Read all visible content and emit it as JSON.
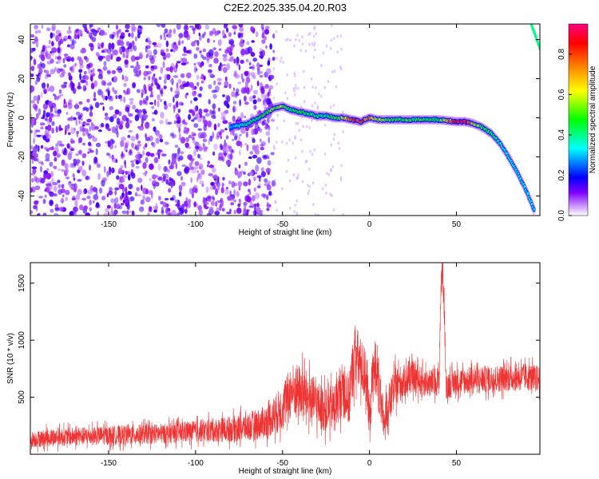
{
  "title": "C2E2.2025.335.04.20.R03",
  "chart_data": [
    {
      "type": "heatmap",
      "xlabel": "Height of straight line (km)",
      "ylabel": "Frequency (Hz)",
      "xlim": [
        -195,
        98
      ],
      "ylim": [
        -50,
        48
      ],
      "xticks": [
        -150,
        -100,
        -50,
        0,
        50
      ],
      "yticks": [
        -40,
        -20,
        0,
        20,
        40
      ],
      "colorbar": {
        "label": "Normalized spectral amplitude",
        "range": [
          0.0,
          0.95
        ],
        "ticks": [
          0.0,
          0.2,
          0.4,
          0.6,
          0.8
        ],
        "colors": [
          "#ffffff",
          "#c080ff",
          "#8000ff",
          "#0000ff",
          "#00ffff",
          "#00ff00",
          "#ffff00",
          "#ff8000",
          "#ff0000",
          "#ff00ff"
        ]
      },
      "ridge": {
        "x": [
          -80,
          -70,
          -60,
          -55,
          -50,
          -45,
          -40,
          -35,
          -30,
          -25,
          -20,
          -15,
          -10,
          -5,
          0,
          5,
          10,
          20,
          30,
          40,
          50,
          55,
          60,
          65,
          70,
          75,
          80,
          85,
          90,
          95
        ],
        "y": [
          -5,
          -3,
          2,
          5,
          6,
          4,
          3,
          2,
          1,
          1,
          0,
          0,
          -1,
          -2,
          0,
          -1,
          -1,
          -1,
          -1,
          -1,
          -2,
          -2,
          -3,
          -5,
          -8,
          -13,
          -20,
          -28,
          -37,
          -48
        ],
        "amplitude": [
          0.3,
          0.4,
          0.5,
          0.55,
          0.6,
          0.45,
          0.5,
          0.5,
          0.45,
          0.4,
          0.5,
          0.6,
          0.85,
          0.8,
          0.75,
          0.6,
          0.5,
          0.5,
          0.5,
          0.45,
          0.9,
          0.95,
          0.6,
          0.5,
          0.45,
          0.4,
          0.35,
          0.35,
          0.35,
          0.3
        ]
      }
    },
    {
      "type": "line",
      "xlabel": "Height of straight line (km)",
      "ylabel": "SNR (10 * v/v)",
      "xlim": [
        -195,
        98
      ],
      "ylim": [
        0,
        1680
      ],
      "xticks": [
        -150,
        -100,
        -50,
        0,
        50
      ],
      "yticks": [
        500,
        1000,
        1500
      ],
      "color": "#ee3333",
      "series": [
        {
          "x": [
            -195,
            -180,
            -160,
            -140,
            -120,
            -100,
            -90,
            -80,
            -70,
            -60,
            -50,
            -45,
            -40,
            -35,
            -30,
            -25,
            -20,
            -15,
            -12,
            -10,
            -8,
            -6,
            -4,
            -2,
            0,
            2,
            4,
            6,
            8,
            10,
            15,
            20,
            25,
            30,
            35,
            40,
            41,
            42,
            43,
            44,
            50,
            60,
            70,
            80,
            90,
            98
          ],
          "y": [
            130,
            150,
            160,
            170,
            180,
            200,
            210,
            220,
            240,
            280,
            400,
            560,
            550,
            500,
            440,
            380,
            420,
            600,
            450,
            700,
            900,
            800,
            750,
            700,
            300,
            700,
            800,
            500,
            250,
            400,
            600,
            640,
            680,
            640,
            620,
            650,
            1400,
            1650,
            1300,
            600,
            640,
            650,
            660,
            670,
            680,
            660
          ],
          "noise": [
            90,
            100,
            100,
            110,
            110,
            120,
            130,
            140,
            160,
            180,
            250,
            300,
            300,
            280,
            260,
            240,
            260,
            300,
            300,
            320,
            350,
            320,
            300,
            300,
            250,
            320,
            320,
            280,
            200,
            220,
            220,
            180,
            170,
            160,
            160,
            160,
            200,
            200,
            200,
            160,
            150,
            150,
            150,
            150,
            150,
            150
          ]
        }
      ]
    }
  ]
}
